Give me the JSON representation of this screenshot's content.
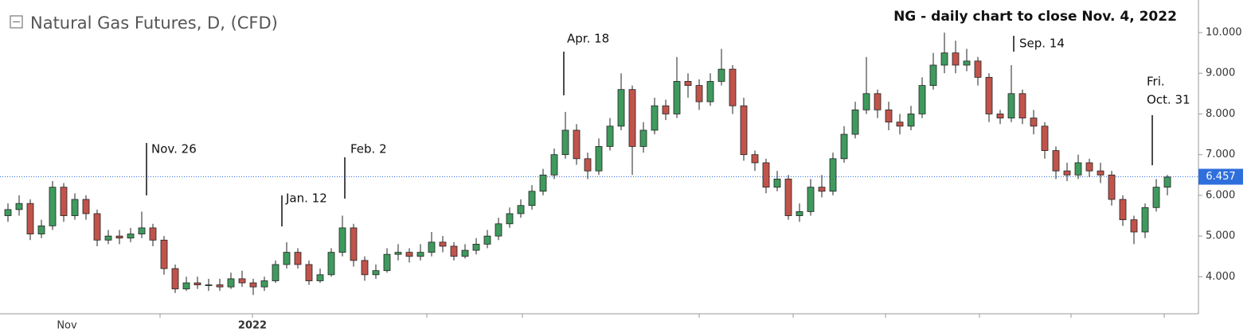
{
  "header": {
    "title": "Natural Gas Futures, D, (CFD)"
  },
  "chart_data": {
    "type": "candlestick",
    "title": "NG - daily chart to close Nov. 4, 2022",
    "open": [
      5.5,
      5.65,
      5.8,
      5.05,
      5.25,
      6.2,
      5.5,
      5.9,
      5.55,
      4.9,
      5.0,
      4.95,
      5.05,
      5.2,
      4.9,
      4.2,
      3.7,
      3.85,
      3.8,
      3.8,
      3.75,
      3.95,
      3.85,
      3.75,
      3.9,
      4.3,
      4.6,
      4.3,
      3.9,
      4.05,
      4.6,
      5.2,
      4.4,
      4.05,
      4.15,
      4.55,
      4.6,
      4.5,
      4.6,
      4.85,
      4.75,
      4.5,
      4.65,
      4.8,
      5.0,
      5.3,
      5.55,
      5.75,
      6.1,
      6.5,
      7.0,
      7.6,
      6.9,
      6.6,
      7.2,
      7.7,
      8.6,
      7.2,
      7.6,
      8.2,
      8.0,
      8.8,
      8.7,
      8.3,
      8.8,
      9.1,
      8.2,
      7.0,
      6.8,
      6.2,
      6.4,
      5.5,
      5.6,
      6.2,
      6.1,
      6.9,
      7.5,
      8.1,
      8.5,
      8.1,
      7.8,
      7.7,
      8.0,
      8.7,
      9.2,
      9.5,
      9.2,
      9.3,
      8.9,
      8.0,
      7.9,
      8.5,
      7.9,
      7.7,
      7.1,
      6.6,
      6.5,
      6.8,
      6.6,
      6.5,
      5.9,
      5.4,
      5.1,
      5.7,
      6.2
    ],
    "high": [
      5.8,
      6.0,
      5.9,
      5.4,
      6.35,
      6.3,
      6.05,
      6.0,
      5.65,
      5.15,
      5.15,
      5.2,
      5.6,
      5.3,
      5.0,
      4.3,
      4.0,
      4.0,
      3.95,
      3.95,
      4.1,
      4.15,
      3.95,
      4.0,
      4.4,
      4.85,
      4.7,
      4.4,
      4.2,
      4.7,
      5.5,
      5.3,
      4.5,
      4.3,
      4.7,
      4.8,
      4.7,
      4.8,
      5.1,
      5.0,
      4.85,
      4.8,
      4.95,
      5.15,
      5.45,
      5.7,
      5.9,
      6.25,
      6.65,
      7.15,
      8.05,
      7.75,
      7.05,
      7.4,
      7.9,
      9.0,
      8.7,
      7.8,
      8.4,
      8.35,
      9.4,
      9.0,
      8.85,
      9.0,
      9.6,
      9.2,
      8.4,
      7.1,
      6.9,
      6.6,
      6.5,
      5.8,
      6.4,
      6.5,
      7.05,
      7.7,
      8.3,
      9.4,
      8.6,
      8.3,
      8.0,
      8.2,
      8.9,
      9.5,
      10.0,
      9.8,
      9.6,
      9.4,
      9.0,
      8.1,
      9.2,
      8.6,
      8.1,
      7.8,
      7.2,
      6.8,
      7.0,
      6.9,
      6.8,
      6.6,
      6.0,
      5.5,
      5.8,
      6.4,
      6.5
    ],
    "low": [
      5.35,
      5.5,
      4.9,
      4.95,
      5.15,
      5.35,
      5.4,
      5.4,
      4.75,
      4.8,
      4.8,
      4.85,
      4.95,
      4.75,
      4.05,
      3.6,
      3.65,
      3.7,
      3.65,
      3.65,
      3.7,
      3.75,
      3.55,
      3.65,
      3.85,
      4.2,
      4.2,
      3.8,
      3.85,
      4.0,
      4.5,
      4.25,
      3.9,
      3.95,
      4.1,
      4.4,
      4.35,
      4.4,
      4.5,
      4.6,
      4.4,
      4.45,
      4.55,
      4.7,
      4.9,
      5.2,
      5.45,
      5.65,
      6.0,
      6.4,
      6.9,
      6.75,
      6.4,
      6.5,
      7.1,
      7.6,
      6.5,
      7.05,
      7.5,
      7.85,
      7.9,
      8.4,
      8.1,
      8.2,
      8.7,
      8.0,
      6.85,
      6.6,
      6.05,
      6.1,
      5.4,
      5.35,
      5.5,
      5.95,
      6.0,
      6.8,
      7.4,
      8.0,
      7.9,
      7.6,
      7.5,
      7.6,
      7.9,
      8.6,
      9.0,
      9.0,
      9.05,
      8.7,
      7.8,
      7.75,
      7.8,
      7.75,
      7.5,
      6.9,
      6.4,
      6.35,
      6.4,
      6.45,
      6.3,
      5.75,
      5.25,
      4.8,
      4.95,
      5.6,
      6.0
    ],
    "close": [
      5.65,
      5.8,
      5.05,
      5.25,
      6.2,
      5.5,
      5.9,
      5.55,
      4.9,
      5.0,
      4.95,
      5.05,
      5.2,
      4.9,
      4.2,
      3.7,
      3.85,
      3.8,
      3.8,
      3.75,
      3.95,
      3.85,
      3.75,
      3.9,
      4.3,
      4.6,
      4.3,
      3.9,
      4.05,
      4.6,
      5.2,
      4.4,
      4.05,
      4.15,
      4.55,
      4.6,
      4.5,
      4.6,
      4.85,
      4.75,
      4.5,
      4.65,
      4.8,
      5.0,
      5.3,
      5.55,
      5.75,
      6.1,
      6.5,
      7.0,
      7.6,
      6.9,
      6.6,
      7.2,
      7.7,
      8.6,
      7.2,
      7.6,
      8.2,
      8.0,
      8.8,
      8.7,
      8.3,
      8.8,
      9.1,
      8.2,
      7.0,
      6.8,
      6.2,
      6.4,
      5.5,
      5.6,
      6.2,
      6.1,
      6.9,
      7.5,
      8.1,
      8.5,
      8.1,
      7.8,
      7.7,
      8.0,
      8.7,
      9.2,
      9.5,
      9.2,
      9.3,
      8.9,
      8.0,
      7.9,
      8.5,
      7.9,
      7.7,
      7.1,
      6.6,
      6.5,
      6.8,
      6.6,
      6.5,
      5.9,
      5.4,
      5.1,
      5.7,
      6.2,
      6.45
    ],
    "up_color": "#3f9a5e",
    "down_color": "#c0544b",
    "ylim": [
      3.09,
      10.8
    ],
    "yticks": [
      {
        "value": 4,
        "label": "4.000"
      },
      {
        "value": 5,
        "label": "5.000"
      },
      {
        "value": 6,
        "label": "6.000"
      },
      {
        "value": 7,
        "label": "7.000"
      },
      {
        "value": 8,
        "label": "8.000"
      },
      {
        "value": 9,
        "label": "9.000"
      },
      {
        "value": 10,
        "label": "10.000"
      }
    ],
    "x_labels": [
      "Nov",
      "2022"
    ],
    "last_price": 6.457,
    "last_price_color": "#2f6fdc",
    "annotations": [
      "Nov. 26",
      "Jan. 12",
      "Feb. 2",
      "Apr. 18",
      "Sep. 14",
      [
        "Fri.",
        "Oct. 31"
      ]
    ]
  }
}
